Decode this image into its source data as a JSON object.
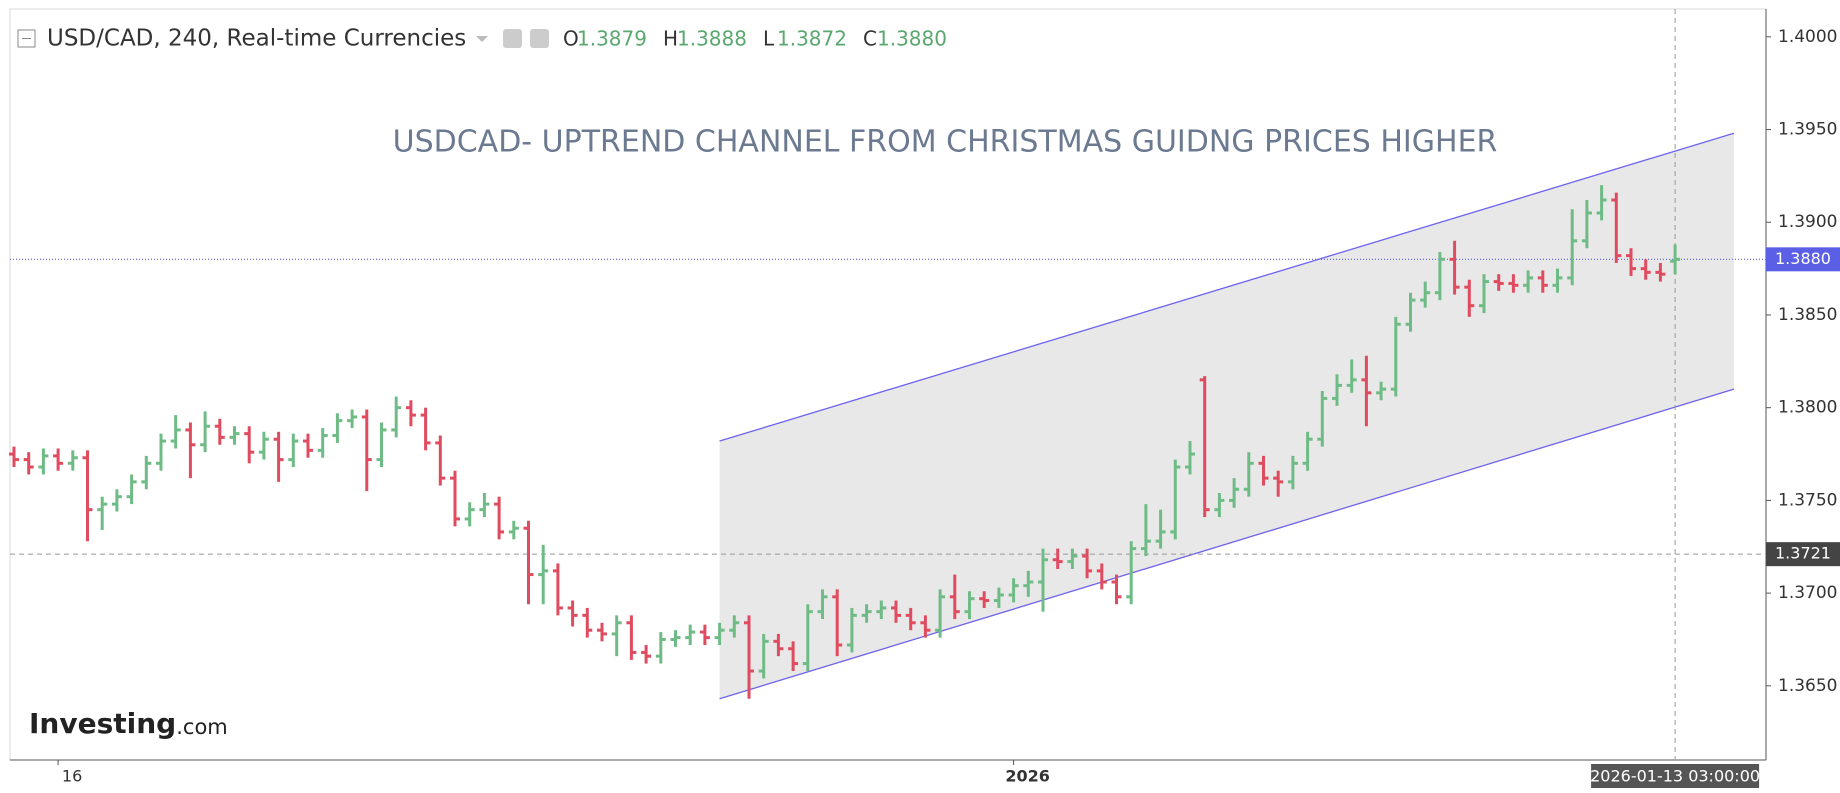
{
  "chart_data": {
    "type": "ohlc",
    "symbol_title": "USD/CAD, 240, Real-time Currencies",
    "ohlc_header": [
      {
        "key": "O",
        "label": "1.3879"
      },
      {
        "key": "H",
        "label": "1.3888"
      },
      {
        "key": "L",
        "label": "1.3872"
      },
      {
        "key": "C",
        "label": "1.3880"
      }
    ],
    "annotation": "USDCAD- UPTREND CHANNEL FROM CHRISTMAS GUIDNG PRICES HIGHER",
    "logo": "Investing",
    "logo_suffix": ".com",
    "up_color": "#6fbb86",
    "down_color": "#df4b5f",
    "categories": [
      null,
      null,
      null,
      "16",
      null,
      null,
      null,
      null,
      null,
      null,
      null,
      null,
      null,
      null,
      null,
      null,
      null,
      null,
      null,
      null,
      null,
      null,
      null,
      null,
      null,
      null,
      null,
      null,
      null,
      null,
      null,
      null,
      null,
      null,
      null,
      null,
      null,
      null,
      null,
      null,
      null,
      null,
      null,
      null,
      null,
      null,
      null,
      null,
      null,
      null,
      null,
      null,
      null,
      null,
      null,
      null,
      null,
      null,
      null,
      null,
      null,
      null,
      null,
      null,
      null,
      null,
      null,
      null,
      "2026",
      null,
      null,
      null,
      null,
      null,
      null,
      null,
      null,
      null,
      null,
      null,
      null,
      null,
      null,
      null,
      null,
      null,
      null,
      null,
      null,
      null,
      null,
      null,
      null,
      null,
      null,
      null,
      null,
      null,
      null,
      null,
      null,
      null,
      null,
      null,
      null,
      null,
      null,
      null,
      null,
      null,
      null,
      null,
      null,
      "2026-01-13 03:00:00"
    ],
    "open": [
      1.3775,
      1.3772,
      1.3768,
      1.3774,
      1.377,
      1.3773,
      1.3745,
      1.3748,
      1.3752,
      1.376,
      1.377,
      1.3782,
      1.3788,
      1.378,
      1.379,
      1.3784,
      1.3786,
      1.3776,
      1.3783,
      1.3772,
      1.3782,
      1.3777,
      1.3785,
      1.3793,
      1.3795,
      1.3772,
      1.3788,
      1.38,
      1.3796,
      1.3781,
      1.3762,
      1.374,
      1.3745,
      1.3748,
      1.3733,
      1.3735,
      1.371,
      1.3712,
      1.3692,
      1.3688,
      1.368,
      1.3678,
      1.3684,
      1.3668,
      1.3666,
      1.3675,
      1.3676,
      1.3679,
      1.3676,
      1.368,
      1.3684,
      1.3658,
      1.3674,
      1.367,
      1.3662,
      1.369,
      1.3698,
      1.3672,
      1.3688,
      1.369,
      1.3692,
      1.3688,
      1.3684,
      1.368,
      1.3698,
      1.369,
      1.3697,
      1.3696,
      1.3699,
      1.3704,
      1.3706,
      1.3718,
      1.3717,
      1.372,
      1.3712,
      1.3706,
      1.3698,
      1.3724,
      1.3728,
      1.3733,
      1.3768,
      1.3815,
      1.3745,
      1.375,
      1.3756,
      1.377,
      1.3762,
      1.376,
      1.377,
      1.3783,
      1.3805,
      1.3812,
      1.3815,
      1.3808,
      1.381,
      1.3845,
      1.3858,
      1.3862,
      1.388,
      1.3865,
      1.3855,
      1.3868,
      1.3867,
      1.3866,
      1.387,
      1.3866,
      1.387,
      1.389,
      1.3905,
      1.3912,
      1.3882,
      1.3875,
      1.3873,
      1.3879
    ],
    "high": [
      1.3779,
      1.3776,
      1.3778,
      1.3778,
      1.3777,
      1.3777,
      1.3752,
      1.3756,
      1.3764,
      1.3774,
      1.3786,
      1.3796,
      1.3792,
      1.3798,
      1.3794,
      1.379,
      1.379,
      1.3787,
      1.3787,
      1.3786,
      1.3786,
      1.3789,
      1.3797,
      1.3799,
      1.3799,
      1.3792,
      1.3806,
      1.3804,
      1.38,
      1.3785,
      1.3766,
      1.3749,
      1.3754,
      1.3752,
      1.3739,
      1.3739,
      1.3726,
      1.3716,
      1.3696,
      1.3692,
      1.3684,
      1.3688,
      1.3688,
      1.3672,
      1.3679,
      1.368,
      1.3683,
      1.3683,
      1.3684,
      1.3688,
      1.3688,
      1.3678,
      1.3678,
      1.3674,
      1.3694,
      1.3702,
      1.3702,
      1.3692,
      1.3694,
      1.3696,
      1.3696,
      1.3692,
      1.3688,
      1.3702,
      1.371,
      1.3701,
      1.3701,
      1.3703,
      1.3708,
      1.3712,
      1.3724,
      1.3724,
      1.3724,
      1.3724,
      1.3716,
      1.371,
      1.3728,
      1.3748,
      1.3745,
      1.3772,
      1.3782,
      1.3817,
      1.3754,
      1.3762,
      1.3776,
      1.3774,
      1.3766,
      1.3774,
      1.3787,
      1.3809,
      1.3818,
      1.3826,
      1.3828,
      1.3814,
      1.3849,
      1.3862,
      1.3868,
      1.3884,
      1.389,
      1.3869,
      1.3872,
      1.3872,
      1.3872,
      1.3874,
      1.3874,
      1.3875,
      1.3907,
      1.3912,
      1.392,
      1.3916,
      1.3886,
      1.388,
      1.3878,
      1.3888
    ],
    "low": [
      1.3768,
      1.3764,
      1.3764,
      1.3766,
      1.3766,
      1.3728,
      1.3734,
      1.3744,
      1.3748,
      1.3756,
      1.3766,
      1.3778,
      1.3762,
      1.3776,
      1.378,
      1.378,
      1.377,
      1.3772,
      1.376,
      1.3768,
      1.3773,
      1.3773,
      1.3781,
      1.3789,
      1.3755,
      1.3768,
      1.3784,
      1.379,
      1.3777,
      1.3758,
      1.3736,
      1.3736,
      1.3741,
      1.3729,
      1.3729,
      1.3694,
      1.3694,
      1.3688,
      1.3682,
      1.3676,
      1.3674,
      1.3666,
      1.3664,
      1.3662,
      1.3662,
      1.3671,
      1.3672,
      1.3672,
      1.3672,
      1.3676,
      1.3643,
      1.3654,
      1.3666,
      1.3658,
      1.3658,
      1.3686,
      1.3666,
      1.3668,
      1.3684,
      1.3686,
      1.3684,
      1.368,
      1.3676,
      1.3676,
      1.3686,
      1.3686,
      1.3692,
      1.3692,
      1.3695,
      1.3698,
      1.369,
      1.3713,
      1.3713,
      1.3708,
      1.3702,
      1.3694,
      1.3694,
      1.372,
      1.3724,
      1.3729,
      1.3764,
      1.3741,
      1.3741,
      1.3746,
      1.3752,
      1.3758,
      1.3752,
      1.3756,
      1.3766,
      1.3779,
      1.3801,
      1.3808,
      1.379,
      1.3804,
      1.3806,
      1.3841,
      1.3854,
      1.3858,
      1.3861,
      1.3849,
      1.3851,
      1.3863,
      1.3862,
      1.3862,
      1.3862,
      1.3862,
      1.3866,
      1.3886,
      1.3901,
      1.3878,
      1.3871,
      1.3869,
      1.3868,
      1.3872
    ],
    "close": [
      1.3772,
      1.3768,
      1.3774,
      1.377,
      1.3773,
      1.3745,
      1.3748,
      1.3752,
      1.376,
      1.377,
      1.3782,
      1.3788,
      1.378,
      1.379,
      1.3784,
      1.3786,
      1.3776,
      1.3783,
      1.3772,
      1.3782,
      1.3777,
      1.3785,
      1.3793,
      1.3795,
      1.3772,
      1.3788,
      1.38,
      1.3796,
      1.3781,
      1.3762,
      1.374,
      1.3745,
      1.3748,
      1.3733,
      1.3735,
      1.371,
      1.3712,
      1.3692,
      1.3688,
      1.368,
      1.3678,
      1.3684,
      1.3668,
      1.3666,
      1.3675,
      1.3676,
      1.3679,
      1.3676,
      1.368,
      1.3684,
      1.3658,
      1.3674,
      1.367,
      1.3662,
      1.369,
      1.3698,
      1.3672,
      1.3688,
      1.369,
      1.3692,
      1.3688,
      1.3684,
      1.368,
      1.3698,
      1.369,
      1.3697,
      1.3696,
      1.3699,
      1.3704,
      1.3706,
      1.3718,
      1.3717,
      1.372,
      1.3712,
      1.3706,
      1.3698,
      1.3724,
      1.3728,
      1.3733,
      1.3768,
      1.3775,
      1.3745,
      1.375,
      1.3756,
      1.377,
      1.3762,
      1.376,
      1.377,
      1.3783,
      1.3805,
      1.3812,
      1.3815,
      1.3808,
      1.381,
      1.3845,
      1.3858,
      1.3862,
      1.388,
      1.3865,
      1.3855,
      1.3868,
      1.3867,
      1.3866,
      1.387,
      1.3866,
      1.387,
      1.389,
      1.3905,
      1.3912,
      1.3882,
      1.3875,
      1.3873,
      1.3872,
      1.388
    ],
    "ylim": [
      1.361,
      1.4015
    ],
    "yticks": [
      {
        "value": 1.365,
        "label": "1.3650"
      },
      {
        "value": 1.37,
        "label": "1.3700"
      },
      {
        "value": 1.375,
        "label": "1.3750"
      },
      {
        "value": 1.38,
        "label": "1.3800"
      },
      {
        "value": 1.385,
        "label": "1.3850"
      },
      {
        "value": 1.39,
        "label": "1.3900"
      },
      {
        "value": 1.395,
        "label": "1.3950"
      },
      {
        "value": 1.4,
        "label": "1.4000"
      }
    ],
    "price_line": {
      "value": 1.388,
      "label": "1.3880",
      "color": "#5b5fe6"
    },
    "crosshair": {
      "value": 1.3721,
      "label": "1.3721",
      "x_index": 113
    },
    "channel": {
      "x": [
        48,
        117
      ],
      "upper": [
        1.3782,
        1.3948
      ],
      "lower": [
        1.3643,
        1.381
      ],
      "color": "#6f63ee",
      "fill": "#e8e8e8"
    }
  }
}
